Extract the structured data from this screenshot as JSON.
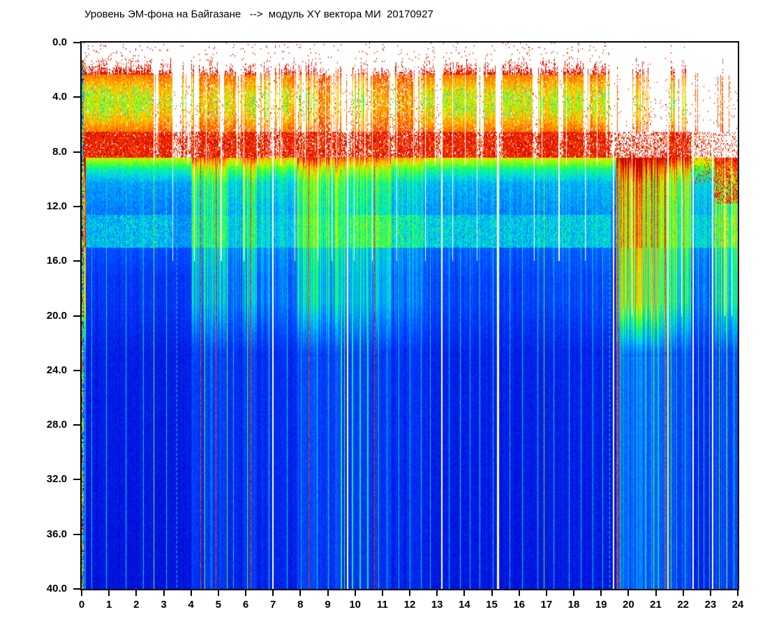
{
  "chart_data": {
    "type": "heatmap",
    "subtype": "spectrogram",
    "title": "Уровень ЭМ-фона на Байгазане   -->  модуль XY вектора МИ  20170927",
    "date": "20170927",
    "xlabel": "",
    "ylabel": "",
    "x_range": [
      0,
      24
    ],
    "y_range": [
      0,
      40
    ],
    "y_inverted_downward": true,
    "x_ticks": [
      "0",
      "1",
      "2",
      "3",
      "4",
      "5",
      "6",
      "7",
      "8",
      "9",
      "10",
      "11",
      "12",
      "13",
      "14",
      "15",
      "16",
      "17",
      "18",
      "19",
      "20",
      "21",
      "22",
      "23",
      "24"
    ],
    "y_ticks": [
      "0.0",
      "4.0",
      "8.0",
      "12.0",
      "16.0",
      "20.0",
      "24.0",
      "28.0",
      "32.0",
      "36.0",
      "40.0"
    ],
    "grid": false,
    "legend": "none",
    "background": "#ffffff",
    "frame_color": "#000000",
    "colormap": "jet",
    "colormap_stops": [
      [
        0,
        [
          0,
          0,
          140
        ]
      ],
      [
        0.1,
        [
          0,
          10,
          215
        ]
      ],
      [
        0.2,
        [
          0,
          70,
          255
        ]
      ],
      [
        0.3,
        [
          0,
          150,
          255
        ]
      ],
      [
        0.4,
        [
          0,
          225,
          225
        ]
      ],
      [
        0.5,
        [
          30,
          255,
          90
        ]
      ],
      [
        0.6,
        [
          160,
          255,
          0
        ]
      ],
      [
        0.7,
        [
          255,
          215,
          0
        ]
      ],
      [
        0.8,
        [
          255,
          110,
          0
        ]
      ],
      [
        0.9,
        [
          240,
          20,
          0
        ]
      ],
      [
        1,
        [
          175,
          0,
          0
        ]
      ]
    ],
    "bands": {
      "white_gap_top": [
        0,
        1.2
      ],
      "red_speckle_top": [
        1.2,
        2.3
      ],
      "green_red_core": [
        2.3,
        6.5
      ],
      "dense_red_band": [
        6.5,
        8.45
      ],
      "yellow_green_fringe": [
        8.45,
        9.3
      ],
      "cyan_transition": [
        9.3,
        10.3
      ],
      "mid_blue": [
        10.3,
        12.6
      ],
      "cyan_speckle_band": [
        12.6,
        14.9
      ],
      "deep_blue": [
        14.9,
        40
      ]
    },
    "top_activity_segments": [
      [
        0.0,
        2.6,
        1.0
      ],
      [
        2.6,
        2.8,
        0.25
      ],
      [
        2.8,
        3.35,
        0.9
      ],
      [
        3.35,
        3.6,
        0.1
      ],
      [
        3.6,
        4.1,
        0.45
      ],
      [
        4.1,
        4.3,
        0.15
      ],
      [
        4.3,
        5.0,
        0.8
      ],
      [
        5.0,
        5.2,
        0.2
      ],
      [
        5.2,
        5.65,
        0.85
      ],
      [
        5.65,
        5.95,
        0.3
      ],
      [
        5.95,
        6.35,
        0.85
      ],
      [
        6.35,
        7.35,
        0.45
      ],
      [
        7.35,
        7.75,
        0.8
      ],
      [
        7.75,
        8.25,
        0.5
      ],
      [
        8.25,
        8.6,
        0.55
      ],
      [
        8.6,
        9.1,
        0.6
      ],
      [
        9.1,
        9.5,
        0.3
      ],
      [
        9.5,
        9.85,
        0.12
      ],
      [
        9.85,
        10.35,
        0.55
      ],
      [
        10.35,
        10.6,
        0.3
      ],
      [
        10.6,
        11.25,
        0.7
      ],
      [
        11.25,
        11.55,
        0.5
      ],
      [
        11.55,
        12.15,
        0.7
      ],
      [
        12.15,
        12.45,
        0.35
      ],
      [
        12.45,
        12.95,
        0.9
      ],
      [
        12.95,
        13.15,
        0.4
      ],
      [
        13.15,
        14.45,
        1.0
      ],
      [
        14.45,
        14.7,
        0.3
      ],
      [
        14.7,
        15.15,
        0.9
      ],
      [
        15.15,
        15.4,
        0.08
      ],
      [
        15.4,
        16.5,
        0.95
      ],
      [
        16.5,
        16.75,
        0.35
      ],
      [
        16.75,
        17.45,
        0.9
      ],
      [
        17.45,
        17.65,
        0.35
      ],
      [
        17.65,
        18.35,
        0.9
      ],
      [
        18.35,
        18.6,
        0.3
      ],
      [
        18.6,
        19.05,
        0.8
      ],
      [
        19.05,
        19.35,
        0.45
      ],
      [
        19.35,
        19.7,
        0.12
      ],
      [
        19.7,
        20.15,
        0.06
      ],
      [
        20.15,
        20.85,
        0.45
      ],
      [
        20.85,
        21.35,
        0.1
      ],
      [
        21.35,
        21.7,
        0.5
      ],
      [
        21.7,
        21.95,
        0.1
      ],
      [
        21.95,
        22.15,
        0.45
      ],
      [
        22.15,
        23.2,
        0.08
      ],
      [
        23.2,
        24.0,
        0.1
      ]
    ],
    "deep_activity_segments": [
      [
        0.0,
        0.15,
        0.9
      ],
      [
        0.15,
        4.0,
        0.1
      ],
      [
        4.0,
        5.4,
        0.5
      ],
      [
        5.4,
        5.9,
        0.3
      ],
      [
        5.9,
        6.4,
        0.45
      ],
      [
        6.4,
        7.9,
        0.28
      ],
      [
        7.9,
        9.5,
        0.55
      ],
      [
        9.5,
        10.6,
        0.45
      ],
      [
        10.6,
        11.3,
        0.4
      ],
      [
        11.3,
        12.5,
        0.3
      ],
      [
        12.5,
        15.3,
        0.15
      ],
      [
        15.3,
        16.5,
        0.12
      ],
      [
        16.5,
        19.4,
        0.16
      ],
      [
        19.4,
        19.55,
        0.05
      ],
      [
        19.55,
        21.35,
        0.95
      ],
      [
        21.35,
        22.3,
        0.7
      ],
      [
        22.3,
        23.15,
        0.22
      ],
      [
        23.15,
        24.0,
        0.65
      ]
    ],
    "cyan_band_segments": [
      [
        0.0,
        3.3,
        0.8
      ],
      [
        3.3,
        9.8,
        0.45
      ],
      [
        9.8,
        19.35,
        0.8
      ],
      [
        19.35,
        22.3,
        0.3
      ],
      [
        22.3,
        24.0,
        0.6
      ]
    ],
    "streaks": [
      [
        0.35,
        1,
        "cyan",
        9,
        40
      ],
      [
        0.9,
        1,
        "cyan",
        9,
        40
      ],
      [
        1.6,
        1,
        "cyan",
        9,
        40
      ],
      [
        2.25,
        1,
        "cyan",
        9,
        40
      ],
      [
        2.62,
        1,
        "green",
        8.5,
        40
      ],
      [
        3.1,
        1,
        "cyan",
        9,
        40
      ],
      [
        4.35,
        1,
        "red",
        8.5,
        40
      ],
      [
        4.5,
        1,
        "green",
        8.5,
        40
      ],
      [
        4.72,
        1,
        "cyan",
        9,
        40
      ],
      [
        4.9,
        1,
        "red",
        8.5,
        40
      ],
      [
        5.3,
        1,
        "green",
        8.5,
        40
      ],
      [
        5.55,
        1,
        "cyan",
        9,
        40
      ],
      [
        6.05,
        1,
        "green",
        8.5,
        40
      ],
      [
        6.18,
        1,
        "red",
        8.5,
        40
      ],
      [
        6.85,
        1,
        "cyan",
        9,
        40
      ],
      [
        7.5,
        1,
        "cyan",
        9,
        40
      ],
      [
        8.02,
        1,
        "cyan",
        9,
        40
      ],
      [
        8.3,
        1,
        "red",
        2,
        40
      ],
      [
        8.6,
        1,
        "cyan",
        9,
        40
      ],
      [
        9.0,
        1,
        "cyan",
        9,
        40
      ],
      [
        9.48,
        2,
        "cyan2",
        8.5,
        40
      ],
      [
        9.6,
        1,
        "green",
        8.5,
        40
      ],
      [
        9.88,
        2,
        "cyan2",
        8.5,
        40
      ],
      [
        10.15,
        2,
        "cyan2",
        8.5,
        40
      ],
      [
        10.45,
        2,
        "cyan2",
        8.5,
        40
      ],
      [
        10.7,
        1,
        "red",
        8.5,
        40
      ],
      [
        10.85,
        1,
        "cyan",
        9,
        40
      ],
      [
        11.15,
        1,
        "cyan",
        9,
        40
      ],
      [
        11.6,
        1,
        "cyan",
        9,
        40
      ],
      [
        12.0,
        1,
        "cyan",
        9,
        40
      ],
      [
        12.4,
        1,
        "cyan",
        9,
        40
      ],
      [
        12.75,
        1,
        "cyan",
        9,
        40
      ],
      [
        13.42,
        1,
        "cyan",
        9,
        40
      ],
      [
        13.85,
        1,
        "cyan",
        9,
        40
      ],
      [
        14.2,
        1,
        "cyan",
        9,
        40
      ],
      [
        14.55,
        1,
        "cyan",
        9,
        40
      ],
      [
        15.05,
        1,
        "cyan",
        9,
        40
      ],
      [
        15.65,
        1,
        "cyan",
        9,
        40
      ],
      [
        16.12,
        1,
        "cyan",
        9,
        40
      ],
      [
        16.68,
        1,
        "cyan",
        9,
        40
      ],
      [
        16.9,
        1,
        "green",
        8.5,
        40
      ],
      [
        17.25,
        1,
        "cyan",
        9,
        40
      ],
      [
        17.82,
        1,
        "cyan",
        9,
        40
      ],
      [
        18.25,
        1,
        "cyan",
        9,
        40
      ],
      [
        18.68,
        1,
        "cyan",
        9,
        40
      ],
      [
        19.05,
        1,
        "cyan",
        9,
        40
      ],
      [
        19.58,
        2,
        "red",
        8,
        40
      ],
      [
        19.68,
        1,
        "green",
        8,
        40
      ],
      [
        20.6,
        1,
        "cyan2",
        20,
        40
      ],
      [
        20.9,
        1,
        "green",
        8.5,
        40
      ],
      [
        21.1,
        1,
        "cyan2",
        20,
        40
      ],
      [
        21.35,
        1,
        "red",
        8.5,
        40
      ],
      [
        21.55,
        1,
        "green",
        8.5,
        40
      ],
      [
        21.75,
        1,
        "cyan",
        9,
        40
      ],
      [
        22.05,
        1,
        "cyan2",
        9,
        40
      ],
      [
        22.55,
        1,
        "cyan2",
        10,
        40
      ],
      [
        22.75,
        1,
        "cyan",
        10,
        40
      ],
      [
        22.95,
        1,
        "cyan2",
        10,
        40
      ],
      [
        23.3,
        1,
        "green",
        8.5,
        40
      ],
      [
        23.6,
        1,
        "green",
        8.5,
        40
      ],
      [
        23.85,
        1,
        "cyan2",
        9,
        40
      ]
    ],
    "streak_values": {
      "cyan": 0.38,
      "cyan2": 0.45,
      "green": 0.55,
      "red": 0.86,
      "yellow": 0.68
    },
    "dashed_lines": [
      [
        3.47,
        10,
        40
      ],
      [
        19.3,
        12,
        40
      ]
    ],
    "dropouts": [
      [
        2.62,
        1,
        0,
        9
      ],
      [
        3.33,
        1,
        0,
        16
      ],
      [
        3.88,
        1,
        0,
        9
      ],
      [
        4.12,
        1,
        0,
        16
      ],
      [
        4.55,
        1,
        0,
        9
      ],
      [
        5.08,
        2,
        0,
        16
      ],
      [
        5.66,
        1,
        0,
        9
      ],
      [
        5.92,
        1,
        0,
        16
      ],
      [
        6.42,
        1,
        0,
        9
      ],
      [
        6.98,
        2,
        0,
        40
      ],
      [
        7.28,
        1,
        0,
        9
      ],
      [
        7.78,
        1,
        0,
        16
      ],
      [
        8.18,
        1,
        0,
        9
      ],
      [
        8.62,
        1,
        0,
        16
      ],
      [
        8.9,
        1,
        0,
        9
      ],
      [
        9.14,
        1,
        0,
        16
      ],
      [
        9.33,
        1,
        0,
        9
      ],
      [
        9.7,
        2,
        0,
        40
      ],
      [
        9.95,
        1,
        0,
        16
      ],
      [
        10.33,
        1,
        0,
        9
      ],
      [
        10.62,
        1,
        0,
        16
      ],
      [
        11.24,
        1,
        0,
        9
      ],
      [
        11.52,
        1,
        0,
        16
      ],
      [
        12.14,
        1,
        0,
        9
      ],
      [
        12.55,
        1,
        0,
        16
      ],
      [
        12.92,
        1,
        0,
        9
      ],
      [
        13.15,
        2,
        0,
        40
      ],
      [
        13.55,
        1,
        0,
        16
      ],
      [
        14.02,
        1,
        0,
        9
      ],
      [
        14.45,
        1,
        0,
        16
      ],
      [
        14.62,
        1,
        0,
        9
      ],
      [
        15.2,
        3,
        0,
        40
      ],
      [
        16.55,
        1,
        0,
        16
      ],
      [
        16.82,
        1,
        0,
        9
      ],
      [
        17.45,
        2,
        0,
        16
      ],
      [
        17.72,
        1,
        0,
        9
      ],
      [
        18.42,
        1,
        0,
        16
      ],
      [
        18.85,
        1,
        0,
        9
      ],
      [
        19.42,
        2,
        0,
        40
      ],
      [
        20.12,
        1,
        8,
        20
      ],
      [
        21.42,
        2,
        0,
        40
      ],
      [
        21.92,
        1,
        8,
        20
      ],
      [
        22.33,
        2,
        0,
        40
      ],
      [
        23.05,
        2,
        0,
        40
      ],
      [
        23.52,
        1,
        8,
        20
      ],
      [
        23.78,
        1,
        8,
        20
      ]
    ],
    "special_zones": {
      "sparse_red_band_hours": [
        [
          19.55,
          21.4
        ],
        [
          22.3,
          23.2
        ]
      ],
      "right_red_band": {
        "hours": [
          23.15,
          24.0
        ],
        "u_range": [
          8.45,
          11.8
        ]
      },
      "left_edge_rainbow_hours": [
        0.0,
        0.08
      ]
    }
  }
}
